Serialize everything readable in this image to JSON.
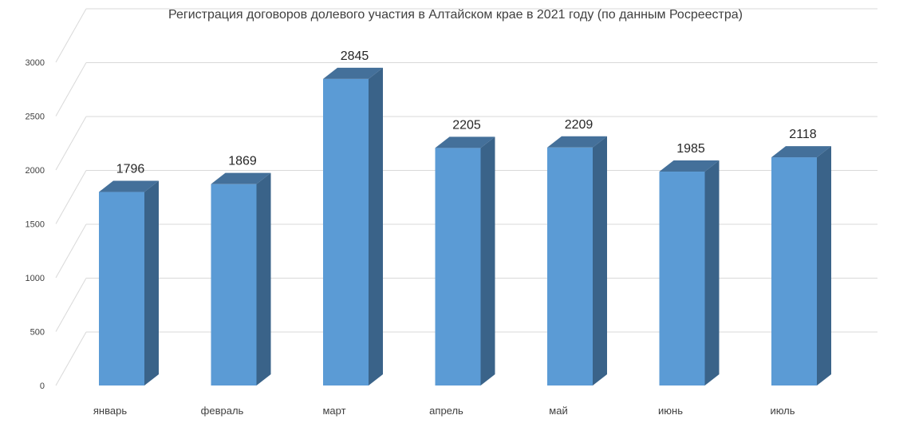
{
  "chart_data": {
    "type": "bar",
    "title": "Регистрация договоров долевого участия в Алтайском крае в 2021 году (по данным Росреестра)",
    "categories": [
      "январь",
      "февраль",
      "март",
      "апрель",
      "май",
      "июнь",
      "июль"
    ],
    "values": [
      1796,
      1869,
      2845,
      2205,
      2209,
      1985,
      2118
    ],
    "ylim": [
      0,
      3000
    ],
    "yticks": [
      0,
      500,
      1000,
      1500,
      2000,
      2500,
      3000
    ],
    "grid": true,
    "style": "3d-column",
    "colors": {
      "front": "#5b9bd5",
      "side": "#3a6389",
      "top": "#44709a",
      "grid": "#d9d9d9"
    }
  }
}
